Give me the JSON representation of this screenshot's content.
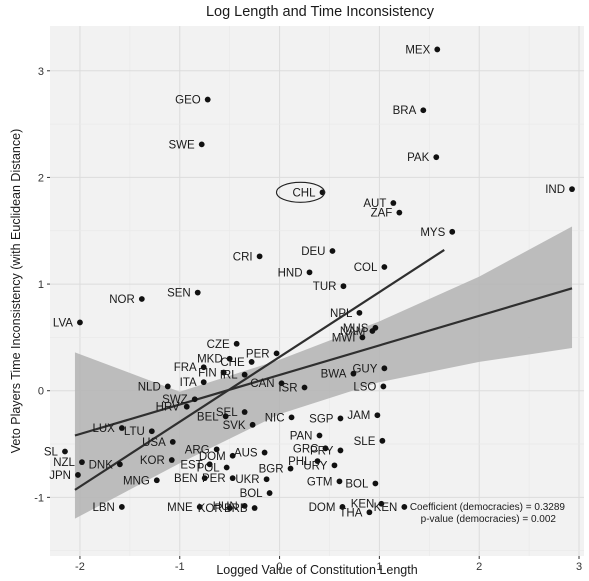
{
  "chart_data": {
    "type": "scatter",
    "title": "Log Length and Time Inconsistency",
    "xlabel": "Logged Value of Constitution Length",
    "ylabel": "Veto Players Time Inconsistency (with Euclidean Distance)",
    "xlim": [
      -2.3,
      3.05
    ],
    "ylim": [
      -1.55,
      3.42
    ],
    "xticks": [
      "-2",
      "-1",
      "0",
      "1",
      "2",
      "3"
    ],
    "yticks": [
      "-1",
      "0",
      "1",
      "2",
      "3"
    ],
    "grid": true,
    "points": [
      {
        "label": "MEX",
        "x": 1.58,
        "y": 3.2
      },
      {
        "label": "GEO",
        "x": -0.72,
        "y": 2.73
      },
      {
        "label": "BRA",
        "x": 1.44,
        "y": 2.63
      },
      {
        "label": "SWE",
        "x": -0.78,
        "y": 2.31
      },
      {
        "label": "PAK",
        "x": 1.57,
        "y": 2.19
      },
      {
        "label": "IND",
        "x": 2.93,
        "y": 1.89
      },
      {
        "label": "CHL",
        "x": 0.43,
        "y": 1.86
      },
      {
        "label": "AUT",
        "x": 1.14,
        "y": 1.76
      },
      {
        "label": "ZAF",
        "x": 1.2,
        "y": 1.67
      },
      {
        "label": "MYS",
        "x": 1.73,
        "y": 1.49
      },
      {
        "label": "DEU",
        "x": 0.53,
        "y": 1.31
      },
      {
        "label": "CRI",
        "x": -0.2,
        "y": 1.26
      },
      {
        "label": "HND",
        "x": 0.3,
        "y": 1.11
      },
      {
        "label": "COL",
        "x": 1.05,
        "y": 1.16
      },
      {
        "label": "TUR",
        "x": 0.64,
        "y": 0.98
      },
      {
        "label": "SEN",
        "x": -0.82,
        "y": 0.92
      },
      {
        "label": "NOR",
        "x": -1.38,
        "y": 0.86
      },
      {
        "label": "NPL",
        "x": 0.8,
        "y": 0.73
      },
      {
        "label": "LVA",
        "x": -2.0,
        "y": 0.64
      },
      {
        "label": "MUS",
        "x": 0.96,
        "y": 0.59
      },
      {
        "label": "NAM",
        "x": 0.93,
        "y": 0.56
      },
      {
        "label": "MWI",
        "x": 0.83,
        "y": 0.5
      },
      {
        "label": "CZE",
        "x": -0.43,
        "y": 0.44
      },
      {
        "label": "PER",
        "x": -0.03,
        "y": 0.35
      },
      {
        "label": "MKD",
        "x": -0.5,
        "y": 0.3
      },
      {
        "label": "CHE",
        "x": -0.28,
        "y": 0.27
      },
      {
        "label": "FRA",
        "x": -0.76,
        "y": 0.22
      },
      {
        "label": "GUY",
        "x": 1.05,
        "y": 0.21
      },
      {
        "label": "BWA",
        "x": 0.74,
        "y": 0.16
      },
      {
        "label": "FIN",
        "x": -0.56,
        "y": 0.17
      },
      {
        "label": "IRL",
        "x": -0.35,
        "y": 0.15
      },
      {
        "label": "NLD",
        "x": -1.12,
        "y": 0.04
      },
      {
        "label": "ITA",
        "x": -0.76,
        "y": 0.08
      },
      {
        "label": "CAN",
        "x": 0.02,
        "y": 0.07
      },
      {
        "label": "LSO",
        "x": 1.04,
        "y": 0.04
      },
      {
        "label": "ISR",
        "x": 0.25,
        "y": 0.03
      },
      {
        "label": "SWZ",
        "x": -0.85,
        "y": -0.08
      },
      {
        "label": "HRV",
        "x": -0.93,
        "y": -0.15
      },
      {
        "label": "SEL",
        "x": -0.35,
        "y": -0.2
      },
      {
        "label": "BEL",
        "x": -0.54,
        "y": -0.24
      },
      {
        "label": "NIC",
        "x": 0.12,
        "y": -0.25
      },
      {
        "label": "SGP",
        "x": 0.61,
        "y": -0.26
      },
      {
        "label": "JAM",
        "x": 0.98,
        "y": -0.23
      },
      {
        "label": "SVK",
        "x": -0.27,
        "y": -0.32
      },
      {
        "label": "LUX",
        "x": -1.58,
        "y": -0.35
      },
      {
        "label": "LTU",
        "x": -1.28,
        "y": -0.38
      },
      {
        "label": "PAN",
        "x": 0.4,
        "y": -0.42
      },
      {
        "label": "SLE",
        "x": 1.03,
        "y": -0.47
      },
      {
        "label": "USA",
        "x": -1.07,
        "y": -0.48
      },
      {
        "label": "SL",
        "x": -2.15,
        "y": -0.57
      },
      {
        "label": "ARG",
        "x": -0.63,
        "y": -0.55
      },
      {
        "label": "GRC",
        "x": 0.46,
        "y": -0.54
      },
      {
        "label": "PRY",
        "x": 0.61,
        "y": -0.56
      },
      {
        "label": "AUS",
        "x": -0.15,
        "y": -0.58
      },
      {
        "label": "DOM",
        "x": -0.47,
        "y": -0.61
      },
      {
        "label": "NZL",
        "x": -1.98,
        "y": -0.67
      },
      {
        "label": "DNK",
        "x": -1.6,
        "y": -0.69
      },
      {
        "label": "KOR",
        "x": -1.08,
        "y": -0.65
      },
      {
        "label": "EST",
        "x": -0.7,
        "y": -0.69
      },
      {
        "label": "POL",
        "x": -0.53,
        "y": -0.72
      },
      {
        "label": "PHL",
        "x": 0.38,
        "y": -0.66
      },
      {
        "label": "URY",
        "x": 0.55,
        "y": -0.7
      },
      {
        "label": "BGR",
        "x": 0.11,
        "y": -0.73
      },
      {
        "label": "JPN",
        "x": -2.02,
        "y": -0.79
      },
      {
        "label": "MNG",
        "x": -1.23,
        "y": -0.84
      },
      {
        "label": "BEN",
        "x": -0.75,
        "y": -0.82
      },
      {
        "label": "PER",
        "x": -0.47,
        "y": -0.82
      },
      {
        "label": "UKR",
        "x": -0.13,
        "y": -0.83
      },
      {
        "label": "GTM",
        "x": 0.6,
        "y": -0.85
      },
      {
        "label": "BOL",
        "x": 0.96,
        "y": -0.87
      },
      {
        "label": "BOL",
        "x": -0.1,
        "y": -0.96
      },
      {
        "label": "LBN",
        "x": -1.58,
        "y": -1.09
      },
      {
        "label": "MNE",
        "x": -0.8,
        "y": -1.09
      },
      {
        "label": "KOR",
        "x": -0.5,
        "y": -1.1
      },
      {
        "label": "HUN",
        "x": -0.35,
        "y": -1.08
      },
      {
        "label": "BRB",
        "x": -0.25,
        "y": -1.1
      },
      {
        "label": "DOM",
        "x": 0.63,
        "y": -1.09
      },
      {
        "label": "KEN",
        "x": 1.02,
        "y": -1.06
      },
      {
        "label": "THA",
        "x": 0.9,
        "y": -1.14
      },
      {
        "label": "KEN",
        "x": 1.25,
        "y": -1.09
      }
    ],
    "fits": [
      {
        "x": [
          -2.05,
          1.65
        ],
        "y": [
          -0.93,
          1.32
        ]
      },
      {
        "x": [
          -2.05,
          2.93
        ],
        "y": [
          -0.42,
          0.96
        ],
        "ci_x": [
          -2.05,
          -1.0,
          0.0,
          1.0,
          2.0,
          2.93
        ],
        "ci_lower": [
          -1.2,
          -0.68,
          -0.22,
          0.08,
          0.27,
          0.4
        ],
        "ci_upper": [
          0.36,
          -0.01,
          0.29,
          0.65,
          1.07,
          1.54
        ]
      }
    ],
    "highlight": "CHL",
    "annotations": [
      "Coefficient (democracies) = 0.3289",
      "p-value (democracies) = 0.002"
    ]
  }
}
